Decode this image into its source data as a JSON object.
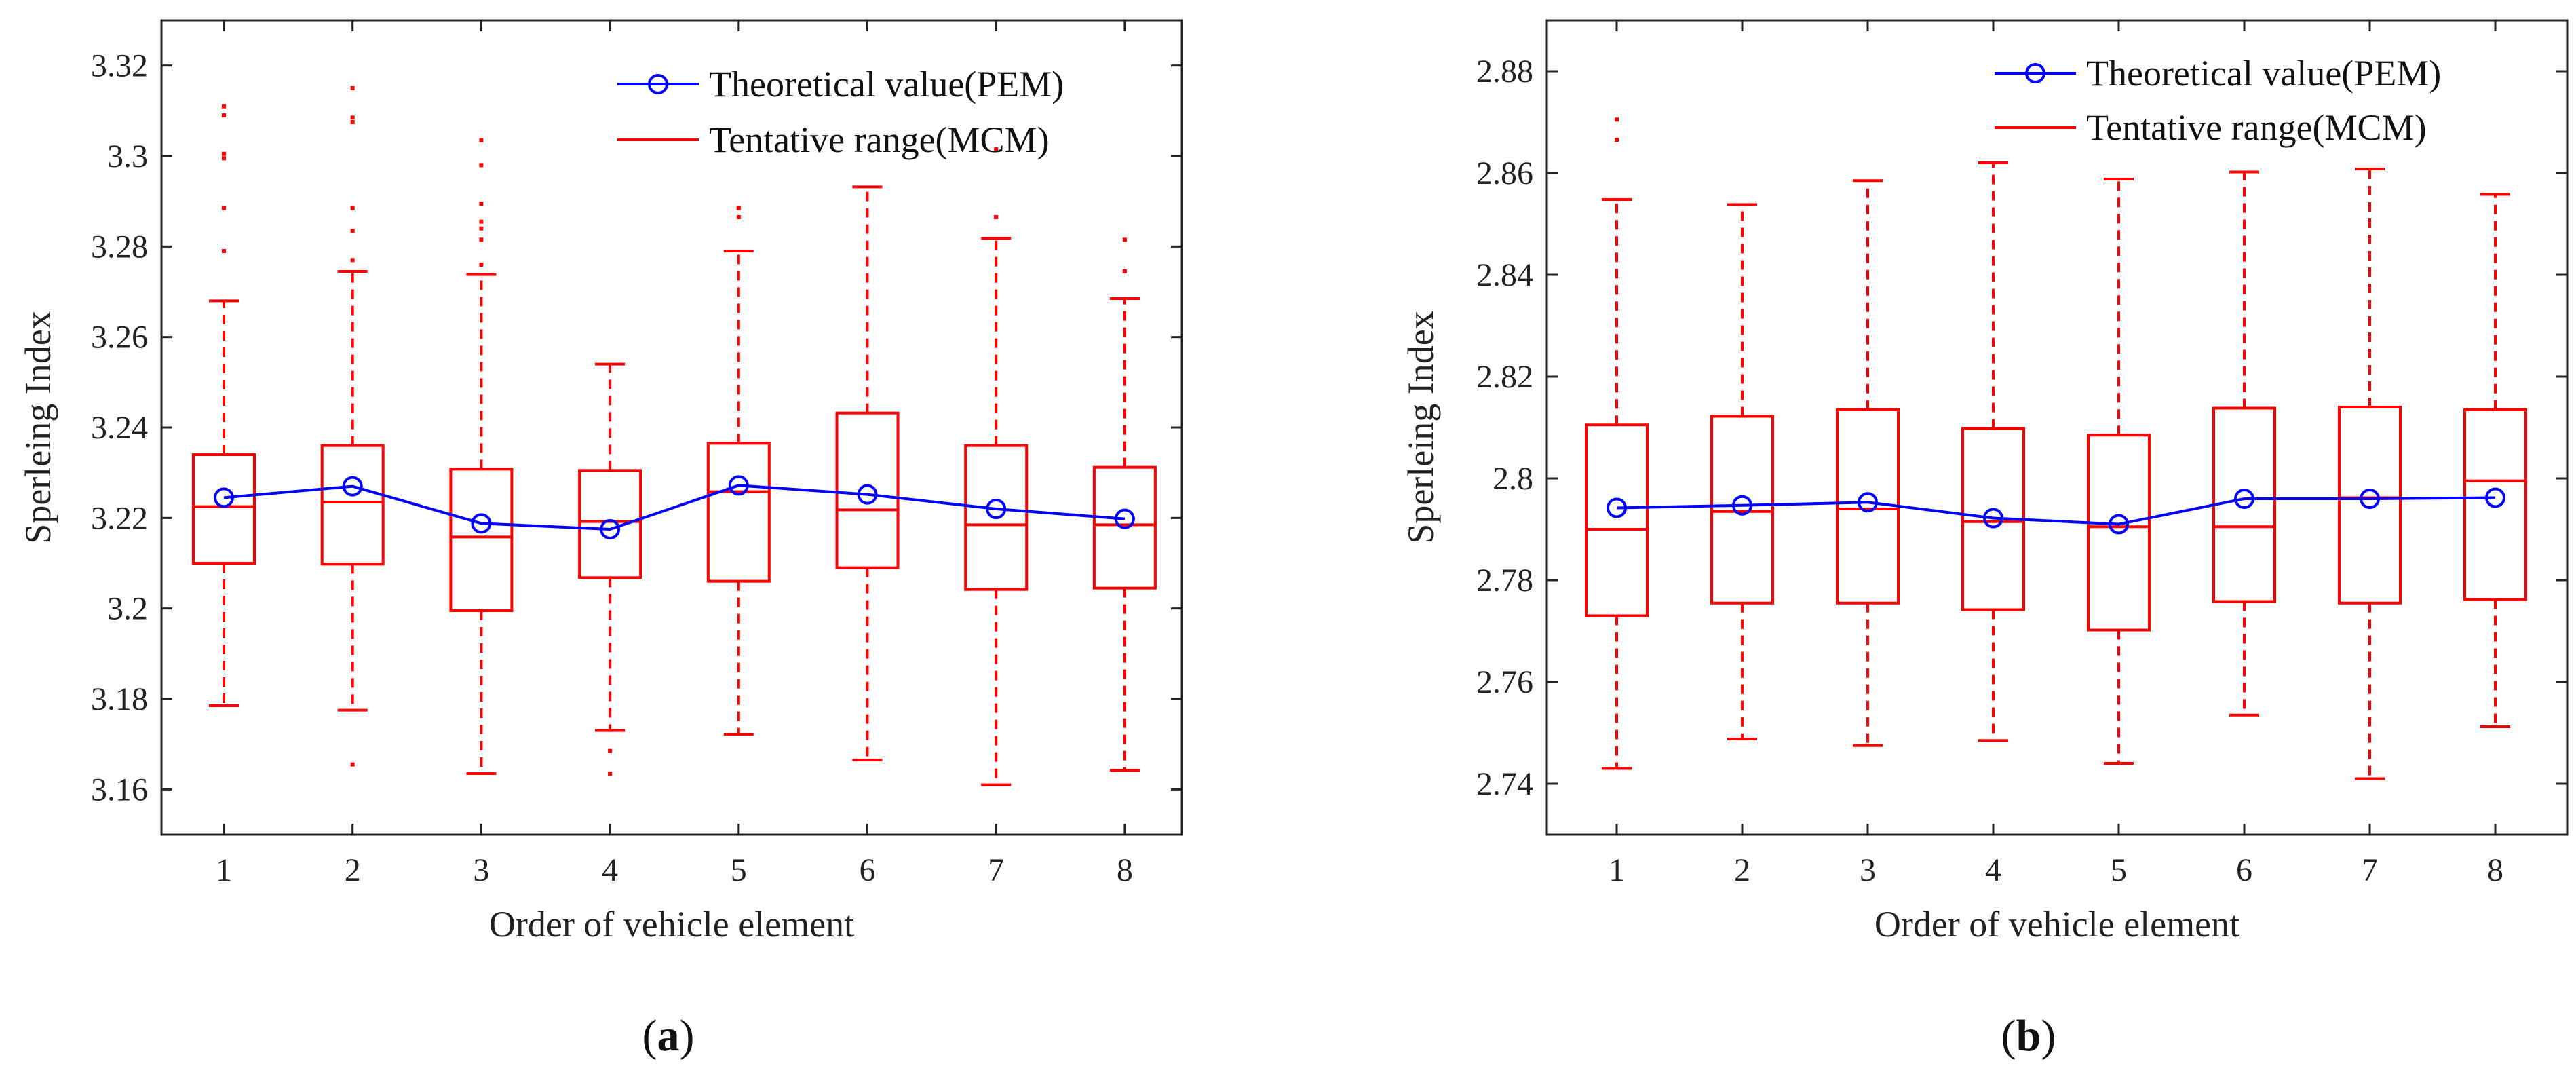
{
  "colors": {
    "theory": "#0000ff",
    "range": "#ff0000",
    "axis": "#222222"
  },
  "labels": {
    "a": {
      "open": "(",
      "letter": "a",
      "close": ")"
    },
    "b": {
      "open": "(",
      "letter": "b",
      "close": ")"
    }
  },
  "chart_data": [
    {
      "type": "box",
      "panel": "a",
      "xlabel": "Order of vehicle element",
      "ylabel": "Sperleing Index",
      "categories": [
        "1",
        "2",
        "3",
        "4",
        "5",
        "6",
        "7",
        "8"
      ],
      "ylim": [
        3.15,
        3.33
      ],
      "yticks": [
        3.16,
        3.18,
        3.2,
        3.22,
        3.24,
        3.26,
        3.28,
        3.3,
        3.32
      ],
      "ytick_labels": [
        "3.16",
        "3.18",
        "3.2",
        "3.22",
        "3.24",
        "3.26",
        "3.28",
        "3.3",
        "3.32"
      ],
      "legend": [
        "Theoretical value(PEM)",
        "Tentative range(MCM)"
      ],
      "theoretical_values": [
        3.2245,
        3.227,
        3.2188,
        3.2175,
        3.2272,
        3.2252,
        3.222,
        3.2198
      ],
      "boxes": [
        {
          "whisker_low": 3.1785,
          "q1": 3.21,
          "median": 3.2225,
          "q3": 3.234,
          "whisker_high": 3.268,
          "outliers": [
            3.279,
            3.2885,
            3.2995,
            3.3005,
            3.309,
            3.311
          ]
        },
        {
          "whisker_low": 3.1775,
          "q1": 3.2098,
          "median": 3.2235,
          "q3": 3.236,
          "whisker_high": 3.2745,
          "outliers": [
            3.1655,
            3.277,
            3.2835,
            3.2885,
            3.3075,
            3.3085,
            3.315
          ]
        },
        {
          "whisker_low": 3.1635,
          "q1": 3.1995,
          "median": 3.2158,
          "q3": 3.2308,
          "whisker_high": 3.2738,
          "outliers": [
            3.276,
            3.2815,
            3.284,
            3.2855,
            3.2895,
            3.298,
            3.3035
          ]
        },
        {
          "whisker_low": 3.173,
          "q1": 3.2068,
          "median": 3.2192,
          "q3": 3.2305,
          "whisker_high": 3.254,
          "outliers": [
            3.1635,
            3.1685
          ]
        },
        {
          "whisker_low": 3.1722,
          "q1": 3.206,
          "median": 3.2258,
          "q3": 3.2365,
          "whisker_high": 3.279,
          "outliers": [
            3.2865,
            3.2885
          ]
        },
        {
          "whisker_low": 3.1665,
          "q1": 3.209,
          "median": 3.2218,
          "q3": 3.2432,
          "whisker_high": 3.2932,
          "outliers": []
        },
        {
          "whisker_low": 3.161,
          "q1": 3.2042,
          "median": 3.2185,
          "q3": 3.236,
          "whisker_high": 3.2818,
          "outliers": [
            3.2865,
            3.3015
          ]
        },
        {
          "whisker_low": 3.1642,
          "q1": 3.2045,
          "median": 3.2185,
          "q3": 3.2312,
          "whisker_high": 3.2685,
          "outliers": [
            3.2745,
            3.2815
          ]
        }
      ]
    },
    {
      "type": "box",
      "panel": "b",
      "xlabel": "Order of vehicle element",
      "ylabel": "Sperleing Index",
      "categories": [
        "1",
        "2",
        "3",
        "4",
        "5",
        "6",
        "7",
        "8"
      ],
      "ylim": [
        2.73,
        2.89
      ],
      "yticks": [
        2.74,
        2.76,
        2.78,
        2.8,
        2.82,
        2.84,
        2.86,
        2.88
      ],
      "ytick_labels": [
        "2.74",
        "2.76",
        "2.78",
        "2.8",
        "2.82",
        "2.84",
        "2.86",
        "2.88"
      ],
      "legend": [
        "Theoretical value(PEM)",
        "Tentative range(MCM)"
      ],
      "theoretical_values": [
        2.7942,
        2.7947,
        2.7953,
        2.7922,
        2.791,
        2.796,
        2.796,
        2.7962
      ],
      "boxes": [
        {
          "whisker_low": 2.743,
          "q1": 2.773,
          "median": 2.79,
          "q3": 2.8105,
          "whisker_high": 2.8548,
          "outliers": [
            2.8665,
            2.8705
          ]
        },
        {
          "whisker_low": 2.7488,
          "q1": 2.7755,
          "median": 2.7935,
          "q3": 2.8122,
          "whisker_high": 2.8538,
          "outliers": []
        },
        {
          "whisker_low": 2.7475,
          "q1": 2.7755,
          "median": 2.794,
          "q3": 2.8135,
          "whisker_high": 2.8585,
          "outliers": []
        },
        {
          "whisker_low": 2.7485,
          "q1": 2.7742,
          "median": 2.7915,
          "q3": 2.8098,
          "whisker_high": 2.862,
          "outliers": []
        },
        {
          "whisker_low": 2.744,
          "q1": 2.7702,
          "median": 2.7905,
          "q3": 2.8085,
          "whisker_high": 2.8588,
          "outliers": []
        },
        {
          "whisker_low": 2.7535,
          "q1": 2.7758,
          "median": 2.7905,
          "q3": 2.8138,
          "whisker_high": 2.8602,
          "outliers": []
        },
        {
          "whisker_low": 2.741,
          "q1": 2.7755,
          "median": 2.7962,
          "q3": 2.814,
          "whisker_high": 2.8608,
          "outliers": []
        },
        {
          "whisker_low": 2.7512,
          "q1": 2.7762,
          "median": 2.7995,
          "q3": 2.8135,
          "whisker_high": 2.8558,
          "outliers": []
        }
      ]
    }
  ]
}
